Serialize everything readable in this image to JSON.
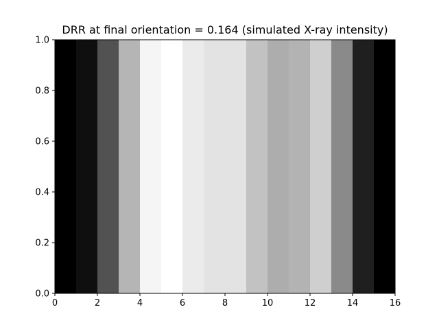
{
  "chart_data": {
    "type": "heatmap",
    "title": "DRR at final orientation = 0.164 (simulated X-ray intensity)",
    "xlabel": "",
    "ylabel": "",
    "xlim": [
      0,
      16
    ],
    "ylim": [
      0,
      1
    ],
    "colormap": "gray",
    "x_ticks": [
      "0",
      "2",
      "4",
      "6",
      "8",
      "10",
      "12",
      "14",
      "16"
    ],
    "y_ticks": [
      "0.0",
      "0.2",
      "0.4",
      "0.6",
      "0.8",
      "1.0"
    ],
    "intensity": [
      0.0,
      0.06,
      0.32,
      0.71,
      0.96,
      1.0,
      0.92,
      0.89,
      0.89,
      0.76,
      0.68,
      0.7,
      0.81,
      0.54,
      0.12,
      0.0
    ],
    "grid": false
  }
}
